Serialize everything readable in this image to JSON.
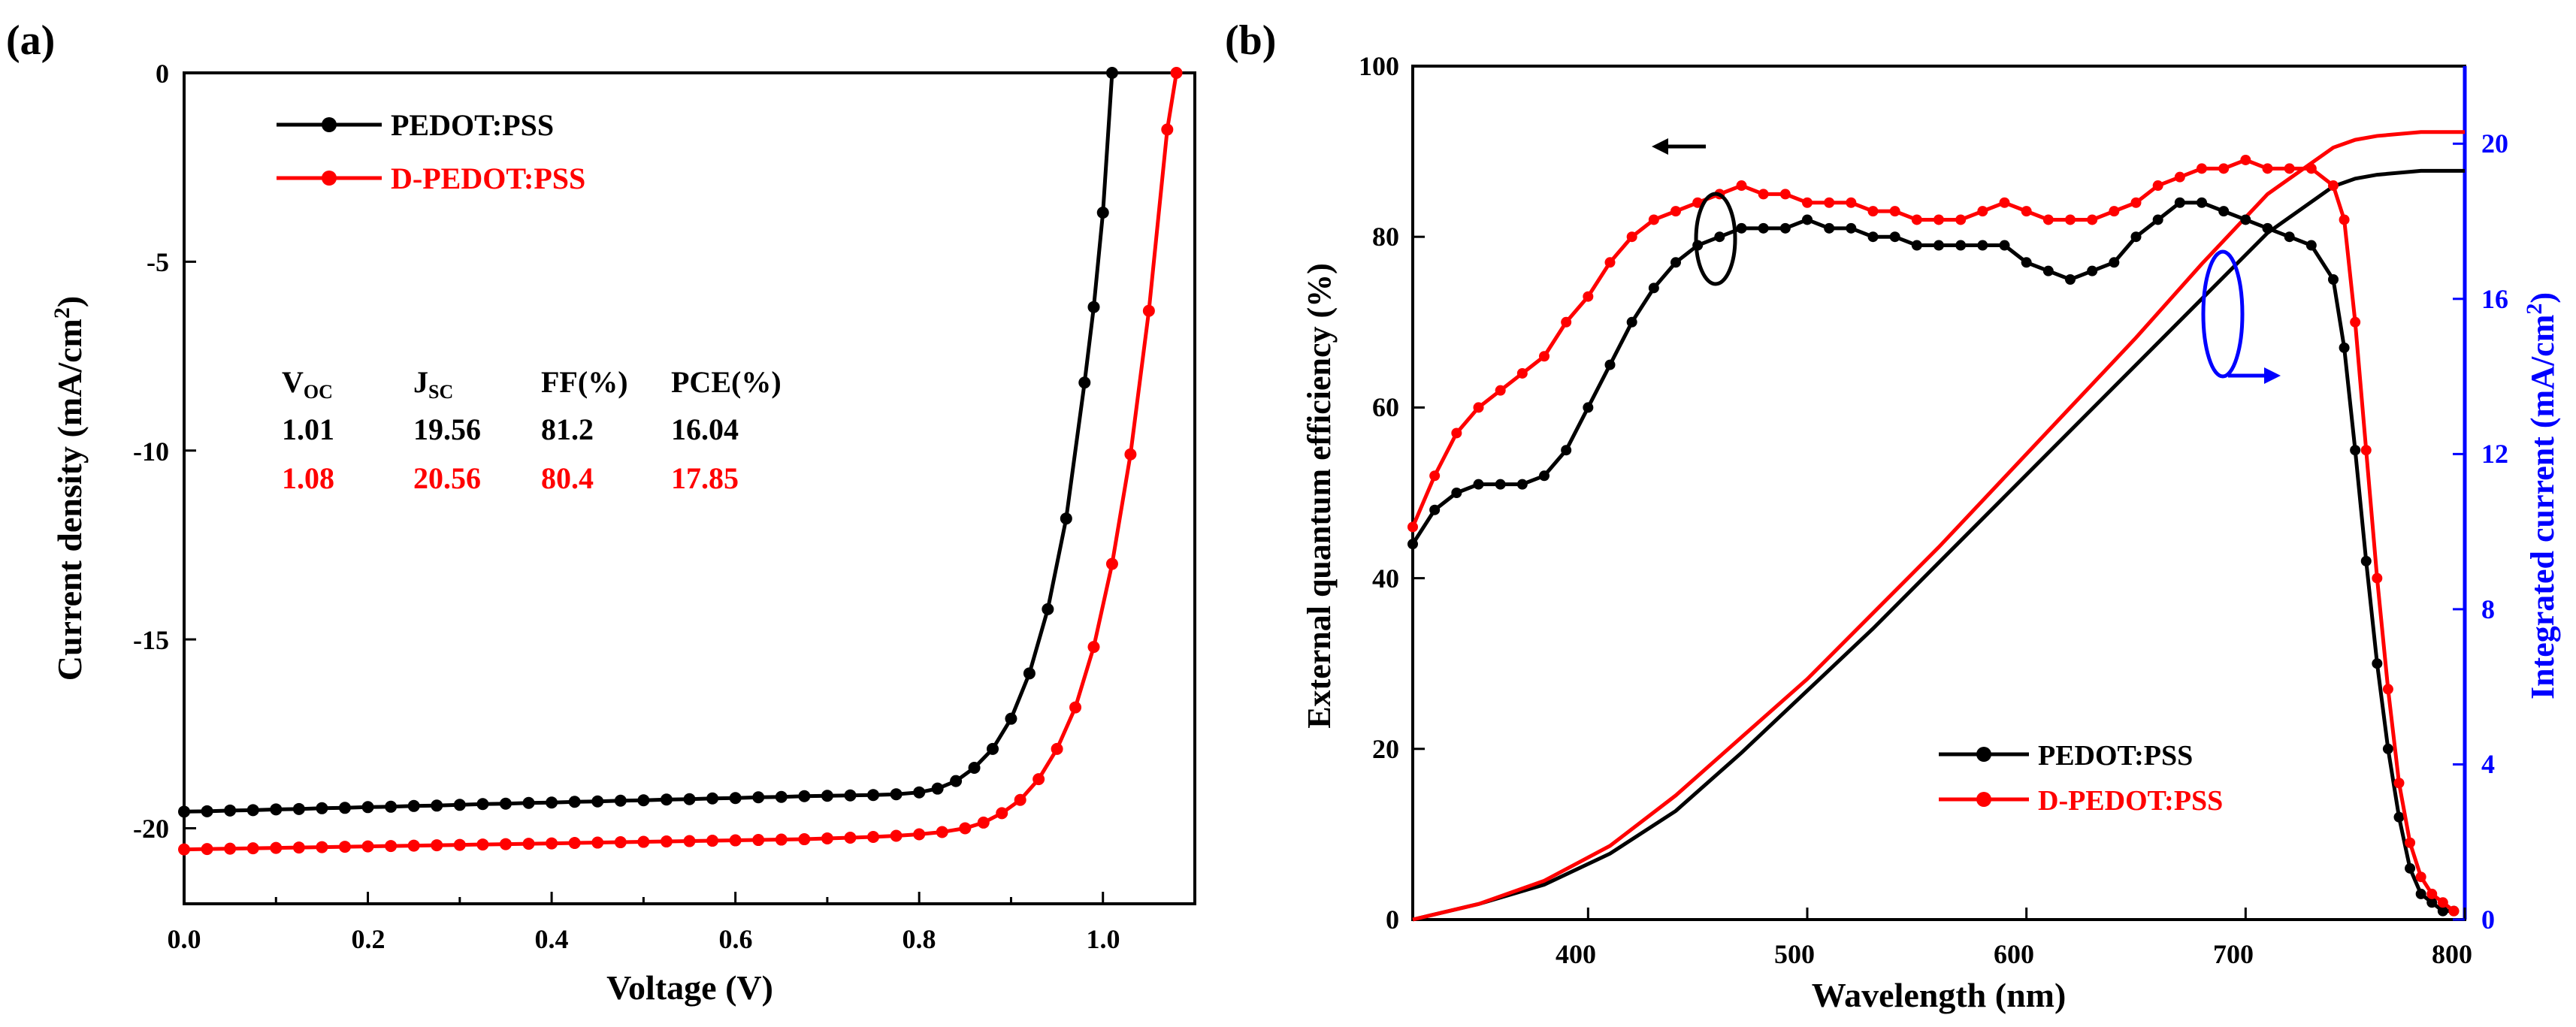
{
  "colors": {
    "black": "#000000",
    "red": "#ff0000",
    "blue": "#0000ff"
  },
  "chart_data": [
    {
      "panel_label": "(a)",
      "type": "line",
      "title": "",
      "xlabel": "Voltage (V)",
      "ylabel": "Current density (mA/cm²)",
      "ylabel_main": "Current density (mA/cm",
      "ylabel_sup": "2",
      "ylabel_tail": ")",
      "xlim": [
        0.0,
        1.1
      ],
      "ylim": [
        -22,
        0
      ],
      "xticks": [
        "0.0",
        "0.2",
        "0.4",
        "0.6",
        "0.8",
        "1.0"
      ],
      "yticks": [
        "0",
        "-5",
        "-10",
        "-15",
        "-20"
      ],
      "legend": [
        "PEDOT:PSS",
        "D-PEDOT:PSS"
      ],
      "series": [
        {
          "name": "PEDOT:PSS",
          "color": "#000000",
          "x": [
            0.0,
            0.025,
            0.05,
            0.075,
            0.1,
            0.125,
            0.15,
            0.175,
            0.2,
            0.225,
            0.25,
            0.275,
            0.3,
            0.325,
            0.35,
            0.375,
            0.4,
            0.425,
            0.45,
            0.475,
            0.5,
            0.525,
            0.55,
            0.575,
            0.6,
            0.625,
            0.65,
            0.675,
            0.7,
            0.725,
            0.75,
            0.775,
            0.8,
            0.82,
            0.84,
            0.86,
            0.88,
            0.9,
            0.92,
            0.94,
            0.96,
            0.98,
            0.99,
            1.0,
            1.01
          ],
          "y": [
            -19.56,
            -19.55,
            -19.53,
            -19.52,
            -19.5,
            -19.49,
            -19.47,
            -19.46,
            -19.44,
            -19.43,
            -19.41,
            -19.4,
            -19.38,
            -19.36,
            -19.35,
            -19.33,
            -19.32,
            -19.3,
            -19.29,
            -19.27,
            -19.26,
            -19.24,
            -19.23,
            -19.21,
            -19.2,
            -19.18,
            -19.17,
            -19.15,
            -19.14,
            -19.13,
            -19.12,
            -19.1,
            -19.05,
            -18.95,
            -18.75,
            -18.4,
            -17.9,
            -17.1,
            -15.9,
            -14.2,
            -11.8,
            -8.2,
            -6.2,
            -3.7,
            0.0
          ]
        },
        {
          "name": "D-PEDOT:PSS",
          "color": "#ff0000",
          "x": [
            0.0,
            0.025,
            0.05,
            0.075,
            0.1,
            0.125,
            0.15,
            0.175,
            0.2,
            0.225,
            0.25,
            0.275,
            0.3,
            0.325,
            0.35,
            0.375,
            0.4,
            0.425,
            0.45,
            0.475,
            0.5,
            0.525,
            0.55,
            0.575,
            0.6,
            0.625,
            0.65,
            0.675,
            0.7,
            0.725,
            0.75,
            0.775,
            0.8,
            0.825,
            0.85,
            0.87,
            0.89,
            0.91,
            0.93,
            0.95,
            0.97,
            0.99,
            1.01,
            1.03,
            1.05,
            1.07,
            1.08
          ],
          "y": [
            -20.56,
            -20.55,
            -20.54,
            -20.53,
            -20.52,
            -20.51,
            -20.5,
            -20.49,
            -20.48,
            -20.47,
            -20.46,
            -20.45,
            -20.44,
            -20.43,
            -20.42,
            -20.41,
            -20.4,
            -20.39,
            -20.38,
            -20.37,
            -20.36,
            -20.35,
            -20.34,
            -20.33,
            -20.32,
            -20.31,
            -20.3,
            -20.29,
            -20.27,
            -20.25,
            -20.23,
            -20.2,
            -20.16,
            -20.1,
            -20.0,
            -19.85,
            -19.6,
            -19.25,
            -18.7,
            -17.9,
            -16.8,
            -15.2,
            -13.0,
            -10.1,
            -6.3,
            -1.5,
            0.0
          ]
        }
      ],
      "table": {
        "headers": [
          {
            "main": "V",
            "sub": "OC"
          },
          {
            "main": "J",
            "sub": "SC"
          },
          {
            "main": "FF(%)",
            "sub": ""
          },
          {
            "main": "PCE(%)",
            "sub": ""
          }
        ],
        "rows": [
          {
            "color": "#000000",
            "values": [
              "1.01",
              "19.56",
              "81.2",
              "16.04"
            ]
          },
          {
            "color": "#ff0000",
            "values": [
              "1.08",
              "20.56",
              "80.4",
              "17.85"
            ]
          }
        ]
      }
    },
    {
      "panel_label": "(b)",
      "type": "line",
      "title": "",
      "xlabel": "Wavelength (nm)",
      "ylabel": "External quantum efficiency (%)",
      "y2label": "Integrated current (mA/cm²)",
      "y2label_main": "Integrated current (mA/cm",
      "y2label_sup": "2",
      "y2label_tail": ")",
      "xlim": [
        320,
        800
      ],
      "ylim": [
        0,
        100
      ],
      "y2lim": [
        0,
        22
      ],
      "xticks": [
        "400",
        "500",
        "600",
        "700",
        "800"
      ],
      "yticks": [
        "0",
        "20",
        "40",
        "60",
        "80",
        "100"
      ],
      "y2ticks": [
        "0",
        "4",
        "8",
        "12",
        "16",
        "20"
      ],
      "legend": [
        "PEDOT:PSS",
        "D-PEDOT:PSS"
      ],
      "eqe_series": [
        {
          "name": "PEDOT:PSS",
          "color": "#000000",
          "x": [
            320,
            330,
            340,
            350,
            360,
            370,
            380,
            390,
            400,
            410,
            420,
            430,
            440,
            450,
            460,
            470,
            480,
            490,
            500,
            510,
            520,
            530,
            540,
            550,
            560,
            570,
            580,
            590,
            600,
            610,
            620,
            630,
            640,
            650,
            660,
            670,
            680,
            690,
            700,
            710,
            720,
            730,
            740,
            745,
            750,
            755,
            760,
            765,
            770,
            775,
            780,
            785,
            790,
            795
          ],
          "y": [
            44,
            48,
            50,
            51,
            51,
            51,
            52,
            55,
            60,
            65,
            70,
            74,
            77,
            79,
            80,
            81,
            81,
            81,
            82,
            81,
            81,
            80,
            80,
            79,
            79,
            79,
            79,
            79,
            77,
            76,
            75,
            76,
            77,
            80,
            82,
            84,
            84,
            83,
            82,
            81,
            80,
            79,
            75,
            67,
            55,
            42,
            30,
            20,
            12,
            6,
            3,
            2,
            1,
            1
          ]
        },
        {
          "name": "D-PEDOT:PSS",
          "color": "#ff0000",
          "x": [
            320,
            330,
            340,
            350,
            360,
            370,
            380,
            390,
            400,
            410,
            420,
            430,
            440,
            450,
            460,
            470,
            480,
            490,
            500,
            510,
            520,
            530,
            540,
            550,
            560,
            570,
            580,
            590,
            600,
            610,
            620,
            630,
            640,
            650,
            660,
            670,
            680,
            690,
            700,
            710,
            720,
            730,
            740,
            745,
            750,
            755,
            760,
            765,
            770,
            775,
            780,
            785,
            790,
            795
          ],
          "y": [
            46,
            52,
            57,
            60,
            62,
            64,
            66,
            70,
            73,
            77,
            80,
            82,
            83,
            84,
            85,
            86,
            85,
            85,
            84,
            84,
            84,
            83,
            83,
            82,
            82,
            82,
            83,
            84,
            83,
            82,
            82,
            82,
            83,
            84,
            86,
            87,
            88,
            88,
            89,
            88,
            88,
            88,
            86,
            82,
            70,
            55,
            40,
            27,
            16,
            9,
            5,
            3,
            2,
            1
          ]
        }
      ],
      "integrated_series": [
        {
          "name": "PEDOT:PSS integrated",
          "color": "#000000",
          "x": [
            320,
            350,
            380,
            410,
            440,
            470,
            500,
            530,
            560,
            590,
            620,
            650,
            680,
            710,
            740,
            750,
            760,
            780,
            800
          ],
          "y": [
            0.0,
            0.4,
            0.9,
            1.7,
            2.8,
            4.3,
            5.9,
            7.5,
            9.2,
            10.9,
            12.6,
            14.3,
            16.0,
            17.7,
            18.9,
            19.1,
            19.2,
            19.3,
            19.3
          ]
        },
        {
          "name": "D-PEDOT:PSS integrated",
          "color": "#ff0000",
          "x": [
            320,
            350,
            380,
            410,
            440,
            470,
            500,
            530,
            560,
            590,
            620,
            650,
            680,
            710,
            740,
            750,
            760,
            780,
            800
          ],
          "y": [
            0.0,
            0.4,
            1.0,
            1.9,
            3.2,
            4.7,
            6.2,
            7.9,
            9.6,
            11.4,
            13.2,
            15.0,
            16.9,
            18.7,
            19.9,
            20.1,
            20.2,
            20.3,
            20.3
          ]
        }
      ]
    }
  ]
}
